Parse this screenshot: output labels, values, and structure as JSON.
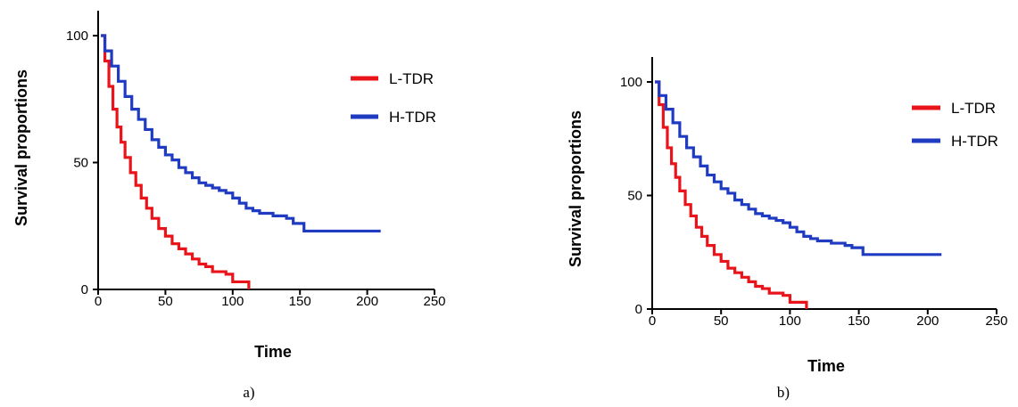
{
  "chart_data": [
    {
      "type": "line",
      "caption": "a)",
      "xlabel": "Time",
      "ylabel": "Survival proportions",
      "xlim": [
        0,
        250
      ],
      "ylim": [
        0,
        100
      ],
      "x_ticks": [
        0,
        50,
        100,
        150,
        200,
        250
      ],
      "y_ticks": [
        0,
        50,
        100
      ],
      "grid": false,
      "legend_position": "top-right",
      "series": [
        {
          "name": "L-TDR",
          "color": "#e8141a",
          "x": [
            2,
            5,
            8,
            11,
            14,
            17,
            20,
            24,
            28,
            32,
            36,
            40,
            45,
            50,
            55,
            60,
            65,
            70,
            75,
            80,
            85,
            95,
            100,
            108,
            112
          ],
          "y": [
            100,
            90,
            80,
            71,
            64,
            58,
            52,
            46,
            41,
            36,
            32,
            28,
            24,
            21,
            18,
            16,
            14,
            12,
            10,
            9,
            7,
            6,
            3,
            3,
            0
          ]
        },
        {
          "name": "H-TDR",
          "color": "#1f3bc1",
          "x": [
            2,
            5,
            10,
            15,
            20,
            25,
            30,
            35,
            40,
            45,
            50,
            55,
            60,
            65,
            70,
            75,
            80,
            85,
            90,
            95,
            100,
            105,
            110,
            115,
            120,
            130,
            140,
            145,
            153,
            160,
            170,
            180,
            190,
            200,
            210
          ],
          "y": [
            100,
            94,
            88,
            82,
            76,
            71,
            67,
            63,
            59,
            56,
            53,
            51,
            48,
            46,
            44,
            42,
            41,
            40,
            39,
            38,
            36,
            34,
            32,
            31,
            30,
            29,
            28,
            26,
            23,
            23,
            23,
            23,
            23,
            23,
            23
          ]
        }
      ]
    },
    {
      "type": "line",
      "caption": "b)",
      "xlabel": "Time",
      "ylabel": "Survival proportions",
      "xlim": [
        0,
        250
      ],
      "ylim": [
        0,
        100
      ],
      "x_ticks": [
        0,
        50,
        100,
        150,
        200,
        250
      ],
      "y_ticks": [
        0,
        50,
        100
      ],
      "grid": false,
      "legend_position": "top-right",
      "series": [
        {
          "name": "L-TDR",
          "color": "#e8141a",
          "x": [
            2,
            5,
            8,
            11,
            14,
            17,
            20,
            24,
            28,
            32,
            36,
            40,
            45,
            50,
            55,
            60,
            65,
            70,
            75,
            80,
            85,
            95,
            100,
            108,
            112
          ],
          "y": [
            100,
            90,
            80,
            71,
            64,
            58,
            52,
            46,
            41,
            36,
            32,
            28,
            24,
            21,
            18,
            16,
            14,
            12,
            10,
            9,
            7,
            6,
            3,
            3,
            0
          ]
        },
        {
          "name": "H-TDR",
          "color": "#1f3bc1",
          "x": [
            2,
            5,
            10,
            15,
            20,
            25,
            30,
            35,
            40,
            45,
            50,
            55,
            60,
            65,
            70,
            75,
            80,
            85,
            90,
            95,
            100,
            105,
            110,
            115,
            120,
            130,
            140,
            145,
            153,
            160,
            170,
            180,
            190,
            200,
            210
          ],
          "y": [
            100,
            94,
            88,
            82,
            76,
            71,
            67,
            63,
            59,
            56,
            53,
            51,
            48,
            46,
            44,
            42,
            41,
            40,
            39,
            38,
            36,
            34,
            32,
            31,
            30,
            29,
            28,
            27,
            24,
            24,
            24,
            24,
            24,
            24,
            24
          ]
        }
      ]
    }
  ]
}
